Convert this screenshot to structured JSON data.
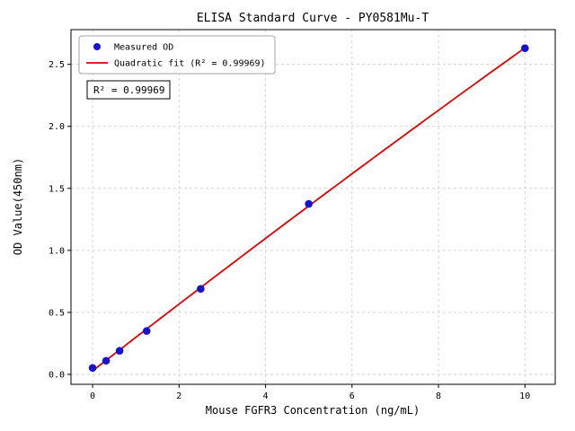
{
  "chart_data": {
    "type": "scatter",
    "title": "ELISA Standard Curve - PY0581Mu-T",
    "xlabel": "Mouse FGFR3 Concentration (ng/mL)",
    "ylabel": "OD Value(450nm)",
    "xlim": [
      -0.5,
      10.7
    ],
    "ylim": [
      -0.08,
      2.78
    ],
    "xticks": [
      0,
      2,
      4,
      6,
      8,
      10
    ],
    "yticks": [
      0.0,
      0.5,
      1.0,
      1.5,
      2.0,
      2.5
    ],
    "grid": true,
    "grid_color": "#c8c8c8",
    "legend_position": "upper-left",
    "series": [
      {
        "name": "Measured OD",
        "type": "scatter",
        "color": "#1414cc",
        "x": [
          0,
          0.3125,
          0.625,
          1.25,
          2.5,
          5,
          10
        ],
        "y": [
          0.052,
          0.11,
          0.19,
          0.35,
          0.69,
          1.375,
          2.63
        ]
      },
      {
        "name": "Quadratic fit (R² = 0.99969)",
        "type": "line",
        "color": "#e00000"
      }
    ],
    "annotation": "R² = 0.99969"
  }
}
